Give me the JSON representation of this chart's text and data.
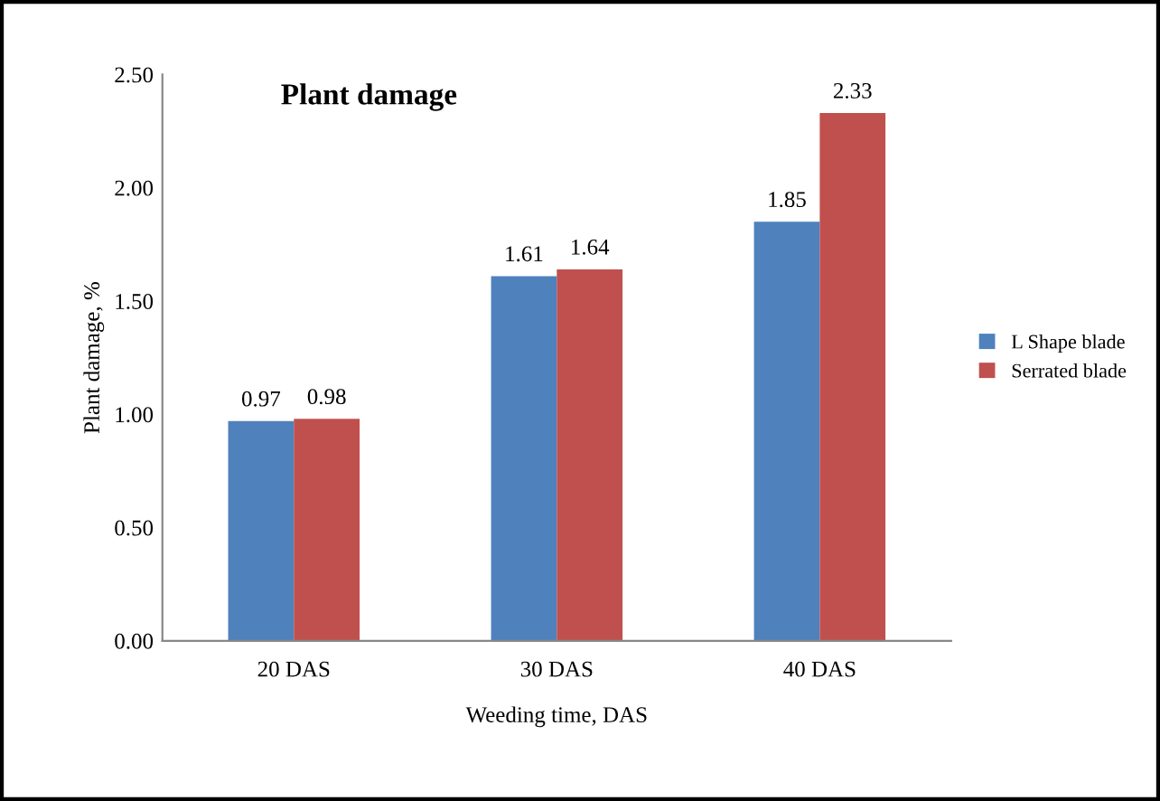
{
  "chart_data": {
    "type": "bar",
    "title": "Plant damage",
    "xlabel": "Weeding time, DAS",
    "ylabel": "Plant damage, %",
    "categories": [
      "20 DAS",
      "30 DAS",
      "40 DAS"
    ],
    "series": [
      {
        "name": "L Shape blade",
        "color": "#4f81bd",
        "values": [
          0.97,
          1.61,
          1.85
        ]
      },
      {
        "name": "Serrated blade",
        "color": "#c0504d",
        "values": [
          0.98,
          1.64,
          2.33
        ]
      }
    ],
    "ylim": [
      0,
      2.5
    ],
    "yticks": [
      {
        "value": 0,
        "label": "0.00"
      },
      {
        "value": 0.5,
        "label": "0.50"
      },
      {
        "value": 1,
        "label": "1.00"
      },
      {
        "value": 1.5,
        "label": "1.50"
      },
      {
        "value": 2,
        "label": "2.00"
      },
      {
        "value": 2.5,
        "label": "2.50"
      }
    ],
    "data_labels": true,
    "legend": "right",
    "grid": false
  }
}
